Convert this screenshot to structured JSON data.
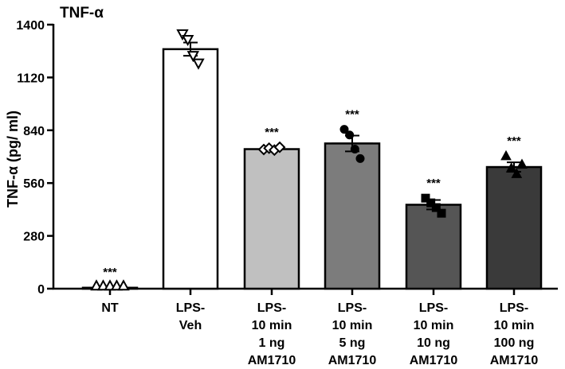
{
  "chart_data": {
    "type": "bar",
    "title": "TNF-α",
    "ylabel": "TNF-α (pg/ ml)",
    "xlabel": "",
    "ylim": [
      0,
      1400
    ],
    "yticks": [
      0,
      280,
      560,
      840,
      1120,
      1400
    ],
    "grid": false,
    "categories": [
      [
        "NT"
      ],
      [
        "LPS-",
        "Veh"
      ],
      [
        "LPS-",
        "10 min",
        "1 ng",
        "AM1710"
      ],
      [
        "LPS-",
        "10 min",
        "5 ng",
        "AM1710"
      ],
      [
        "LPS-",
        "10 min",
        "10 ng",
        "AM1710"
      ],
      [
        "LPS-",
        "10 min",
        "100 ng",
        "AM1710"
      ]
    ],
    "values": [
      5,
      1270,
      740,
      770,
      445,
      645
    ],
    "sem": [
      3,
      35,
      8,
      42,
      25,
      25
    ],
    "bar_colors": [
      "#ffffff",
      "#ffffff",
      "#c0c0c0",
      "#7c7c7c",
      "#555555",
      "#3a3a3a"
    ],
    "significance": [
      "***",
      "",
      "***",
      "***",
      "***",
      "***"
    ],
    "points": [
      {
        "marker": "triangle-up-open",
        "values": [
          3,
          3,
          3,
          3,
          3
        ]
      },
      {
        "marker": "triangle-down-open",
        "values": [
          1350,
          1320,
          1235,
          1195
        ]
      },
      {
        "marker": "diamond-open",
        "values": [
          738,
          745,
          735,
          750
        ]
      },
      {
        "marker": "circle",
        "values": [
          845,
          815,
          740,
          690
        ]
      },
      {
        "marker": "square",
        "values": [
          480,
          455,
          430,
          400
        ]
      },
      {
        "marker": "triangle-up",
        "values": [
          705,
          640,
          610,
          660
        ]
      }
    ]
  }
}
